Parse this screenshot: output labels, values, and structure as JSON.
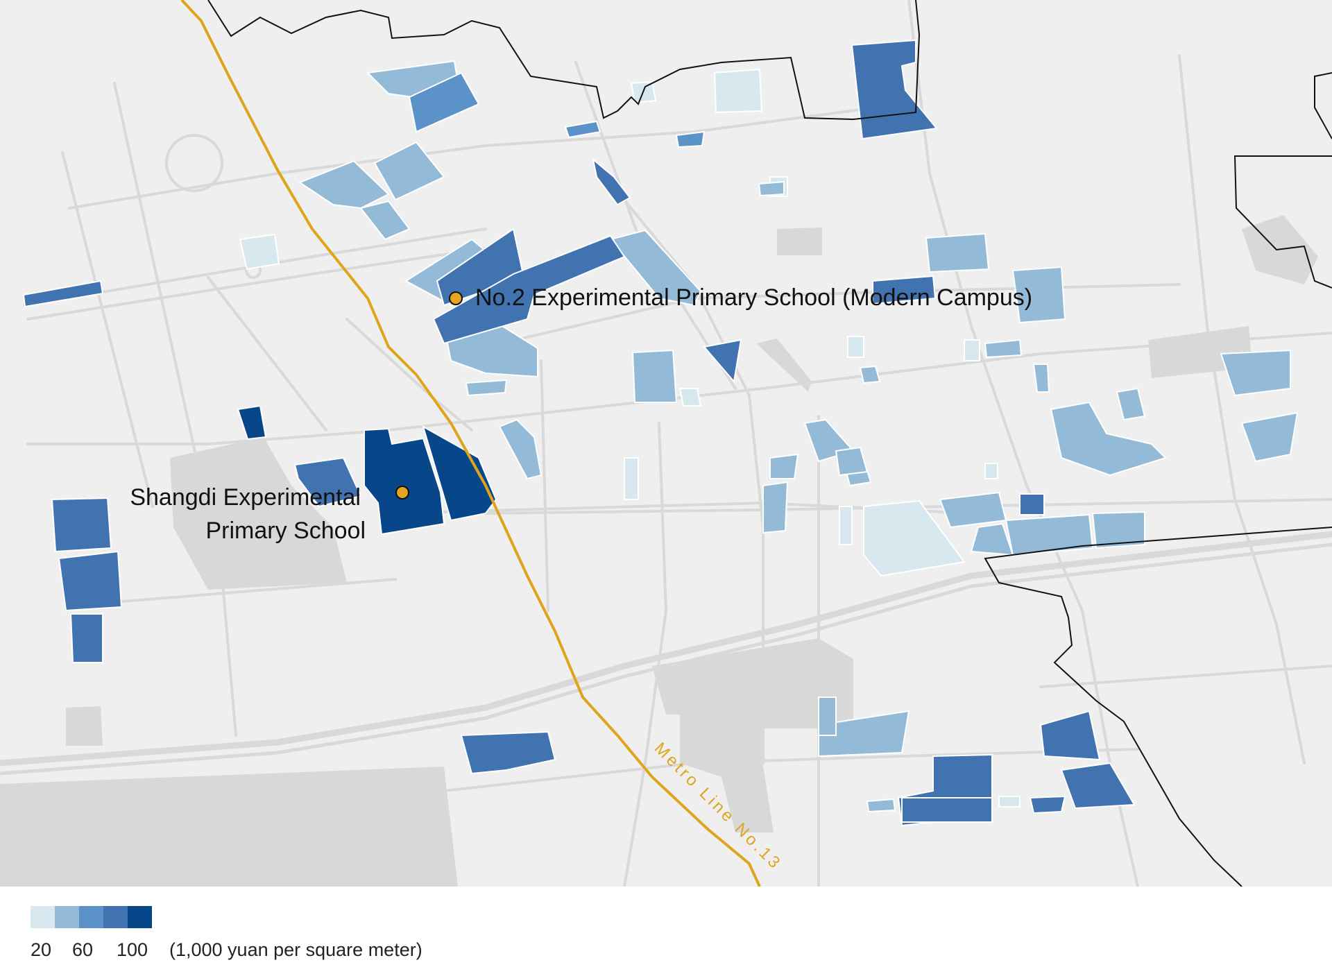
{
  "map": {
    "metro_label": "Metro  Line  No.13",
    "colors": {
      "background": "#efefef",
      "roads": "#d9d9d9",
      "buildings": "#d6d6d6",
      "metro_line": "#dea51c",
      "boundary": "#111111",
      "school_marker": "#e5a520"
    },
    "schools": [
      {
        "name": "No.2 Experimental Primary School (Modern Campus)"
      },
      {
        "name_line1": "Shangdi Experimental",
        "name_line2": "Primary School"
      }
    ]
  },
  "legend": {
    "colors": [
      "#d7e9ee",
      "#93bbd7",
      "#5b93c8",
      "#4073b0",
      "#08468a"
    ],
    "ticks": [
      "20",
      "60",
      "100"
    ],
    "unit": "(1,000 yuan per square meter)"
  }
}
